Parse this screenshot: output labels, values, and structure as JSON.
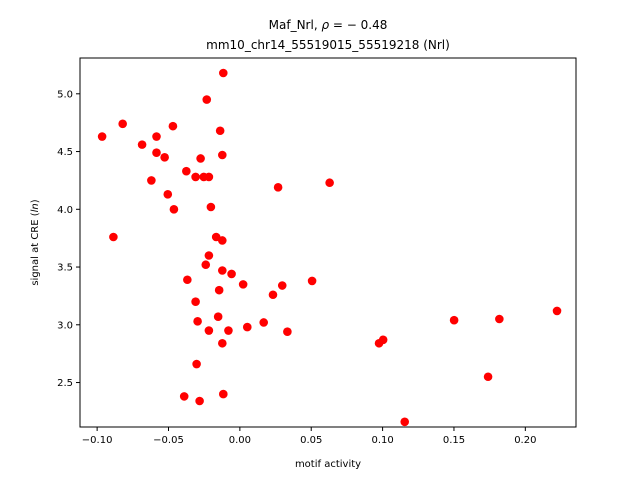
{
  "chart_data": {
    "type": "scatter",
    "title_line1": "Maf_Nrl, ",
    "title_rho_symbol": "ρ",
    "title_rho_value": " = − 0.48",
    "title_line2": "mm10_chr14_55519015_55519218 (Nrl)",
    "xlabel": "motif activity",
    "ylabel_prefix": "signal at CRE (",
    "ylabel_italic": "ln",
    "ylabel_suffix": ")",
    "xlim": [
      -0.112,
      0.2355
    ],
    "ylim": [
      2.115,
      5.31
    ],
    "x_ticks": [
      -0.1,
      -0.05,
      0.0,
      0.05,
      0.1,
      0.15,
      0.2
    ],
    "x_tick_labels": [
      "−0.10",
      "−0.05",
      "0.00",
      "0.05",
      "0.10",
      "0.15",
      "0.20"
    ],
    "y_ticks": [
      2.5,
      3.0,
      3.5,
      4.0,
      4.5,
      5.0
    ],
    "y_tick_labels": [
      "2.5",
      "3.0",
      "3.5",
      "4.0",
      "4.5",
      "5.0"
    ],
    "marker_color": "#ff0000",
    "grid": false,
    "points": [
      {
        "x": -0.0965,
        "y": 4.63
      },
      {
        "x": -0.0821,
        "y": 4.74
      },
      {
        "x": -0.0886,
        "y": 3.76
      },
      {
        "x": -0.0685,
        "y": 4.56
      },
      {
        "x": -0.0584,
        "y": 4.63
      },
      {
        "x": -0.0584,
        "y": 4.49
      },
      {
        "x": -0.062,
        "y": 4.25
      },
      {
        "x": -0.0527,
        "y": 4.45
      },
      {
        "x": -0.0469,
        "y": 4.72
      },
      {
        "x": -0.0505,
        "y": 4.13
      },
      {
        "x": -0.0462,
        "y": 4.0
      },
      {
        "x": -0.0375,
        "y": 4.33
      },
      {
        "x": -0.031,
        "y": 4.28
      },
      {
        "x": -0.0275,
        "y": 4.44
      },
      {
        "x": -0.0253,
        "y": 4.28
      },
      {
        "x": -0.0217,
        "y": 4.28
      },
      {
        "x": -0.0232,
        "y": 4.95
      },
      {
        "x": -0.0116,
        "y": 5.18
      },
      {
        "x": -0.0138,
        "y": 4.68
      },
      {
        "x": -0.0123,
        "y": 4.47
      },
      {
        "x": -0.0203,
        "y": 4.02
      },
      {
        "x": -0.0166,
        "y": 3.76
      },
      {
        "x": -0.0123,
        "y": 3.73
      },
      {
        "x": -0.0217,
        "y": 3.6
      },
      {
        "x": -0.0239,
        "y": 3.52
      },
      {
        "x": -0.0123,
        "y": 3.47
      },
      {
        "x": -0.0058,
        "y": 3.44
      },
      {
        "x": -0.0368,
        "y": 3.39
      },
      {
        "x": 0.0023,
        "y": 3.35
      },
      {
        "x": -0.0145,
        "y": 3.3
      },
      {
        "x": 0.0297,
        "y": 3.34
      },
      {
        "x": 0.0232,
        "y": 3.26
      },
      {
        "x": 0.0506,
        "y": 3.38
      },
      {
        "x": -0.031,
        "y": 3.2
      },
      {
        "x": -0.0152,
        "y": 3.07
      },
      {
        "x": -0.0296,
        "y": 3.03
      },
      {
        "x": -0.0217,
        "y": 2.95
      },
      {
        "x": -0.008,
        "y": 2.95
      },
      {
        "x": 0.0052,
        "y": 2.98
      },
      {
        "x": 0.0167,
        "y": 3.02
      },
      {
        "x": 0.0333,
        "y": 2.94
      },
      {
        "x": -0.0123,
        "y": 2.84
      },
      {
        "x": -0.0303,
        "y": 2.66
      },
      {
        "x": -0.039,
        "y": 2.38
      },
      {
        "x": -0.0282,
        "y": 2.34
      },
      {
        "x": -0.0116,
        "y": 2.4
      },
      {
        "x": 0.0629,
        "y": 4.23
      },
      {
        "x": 0.0268,
        "y": 4.19
      },
      {
        "x": 0.0975,
        "y": 2.84
      },
      {
        "x": 0.1004,
        "y": 2.87
      },
      {
        "x": 0.1155,
        "y": 2.16
      },
      {
        "x": 0.1501,
        "y": 3.04
      },
      {
        "x": 0.1739,
        "y": 2.55
      },
      {
        "x": 0.1818,
        "y": 3.05
      },
      {
        "x": 0.2222,
        "y": 3.12
      }
    ]
  }
}
